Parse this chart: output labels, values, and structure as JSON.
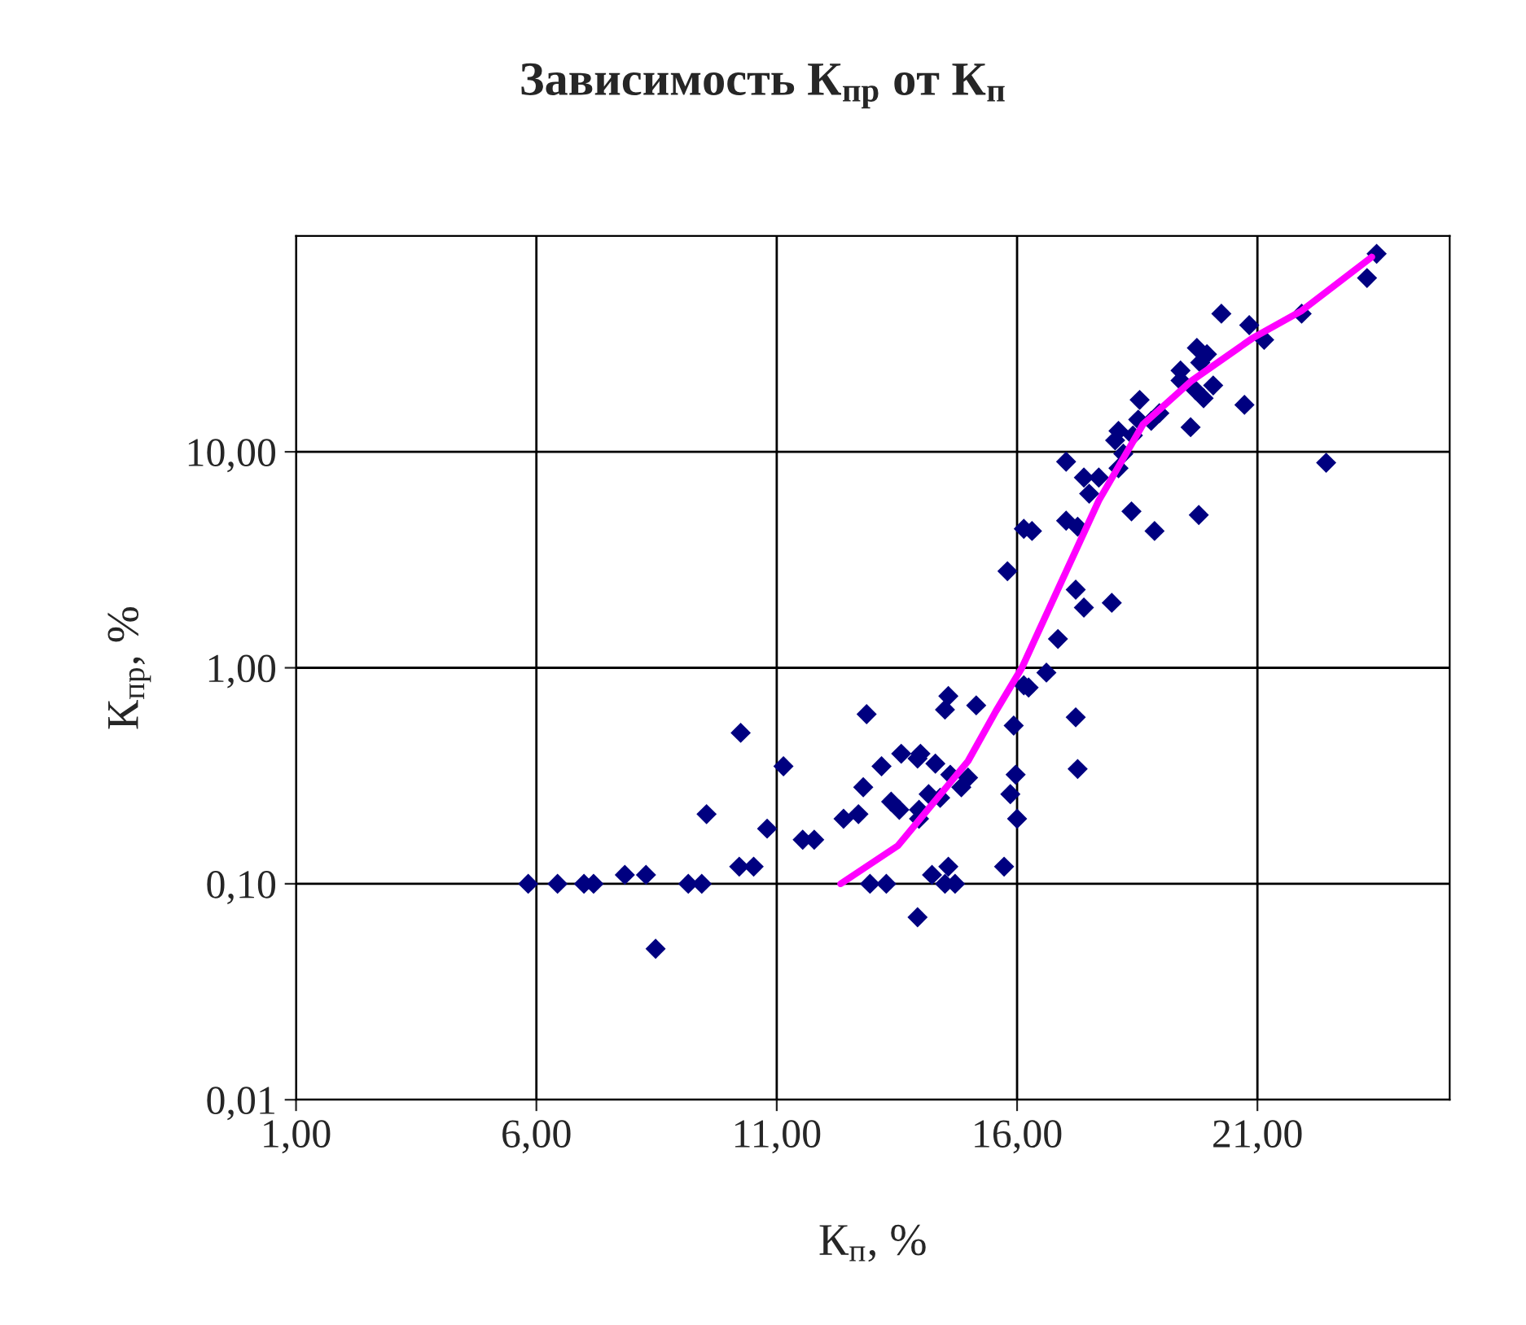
{
  "chart_data": {
    "type": "scatter",
    "title": "Зависимость К$_{пр}$ от К$_{п}$",
    "xlabel": "К$_{п}$, %",
    "ylabel": "К$_{пр}$, %",
    "log": "y",
    "grid": true,
    "marker": "diamond",
    "xlim": [
      1,
      25
    ],
    "xticks": [
      {
        "value": 1,
        "label": "1,00"
      },
      {
        "value": 6,
        "label": "6,00"
      },
      {
        "value": 11,
        "label": "11,00"
      },
      {
        "value": 16,
        "label": "16,00"
      },
      {
        "value": 21,
        "label": "21,00"
      }
    ],
    "ylim": [
      0.01,
      100
    ],
    "yticks": [
      {
        "value": 0.01,
        "label": "0,01"
      },
      {
        "value": 0.1,
        "label": "0,10"
      },
      {
        "value": 1,
        "label": "1,00"
      },
      {
        "value": 10,
        "label": "10,00"
      }
    ],
    "series": [
      {
        "color": "#000080",
        "x": [
          5.83,
          6.44,
          6.99,
          7.19,
          7.84,
          8.28,
          8.48,
          9.16,
          9.44,
          9.54,
          10.25,
          10.22,
          10.52,
          10.8,
          11.14,
          11.54,
          11.78,
          12.39,
          12.7,
          12.87,
          12.8,
          13.18,
          12.94,
          13.28,
          13.59,
          13.99,
          13.93,
          14.3,
          13.38,
          13.55,
          14.16,
          14.4,
          13.96,
          13.96,
          14.57,
          14.5,
          15.15,
          15.93,
          14.61,
          14.98,
          14.84,
          15.86,
          15.97,
          16.0,
          15.73,
          14.57,
          14.23,
          14.5,
          14.71,
          13.93,
          16.14,
          16.85,
          16.61,
          16.24,
          17.22,
          17.26,
          23.48,
          23.28,
          21.92,
          20.25,
          20.83,
          21.14,
          19.74,
          19.95,
          19.81,
          19.4,
          19.4,
          20.08,
          19.71,
          19.88,
          20.73,
          18.55,
          18.96,
          18.52,
          18.79,
          19.61,
          18.11,
          18.41,
          18.04,
          18.21,
          18.11,
          17.02,
          17.39,
          17.7,
          17.5,
          22.43,
          18.38,
          19.78,
          18.86,
          17.02,
          17.26,
          16.14,
          16.31,
          15.8,
          17.22,
          17.39,
          17.97
        ],
        "values": [
          0.1,
          0.1,
          0.1,
          0.1,
          0.11,
          0.11,
          0.05,
          0.1,
          0.1,
          0.21,
          0.5,
          0.12,
          0.12,
          0.18,
          0.35,
          0.16,
          0.16,
          0.2,
          0.21,
          0.61,
          0.28,
          0.35,
          0.1,
          0.1,
          0.4,
          0.4,
          0.38,
          0.36,
          0.24,
          0.22,
          0.26,
          0.25,
          0.22,
          0.2,
          0.74,
          0.64,
          0.67,
          0.54,
          0.32,
          0.31,
          0.28,
          0.26,
          0.32,
          0.2,
          0.12,
          0.12,
          0.11,
          0.1,
          0.1,
          0.07,
          0.83,
          1.36,
          0.95,
          0.81,
          0.59,
          0.34,
          82.6,
          63.8,
          43.6,
          43.6,
          38.6,
          33.0,
          30.3,
          28.3,
          25.9,
          23.8,
          21.4,
          20.3,
          19.3,
          17.7,
          16.5,
          17.4,
          15.1,
          14.1,
          13.9,
          13.0,
          12.5,
          11.9,
          11.3,
          9.8,
          8.4,
          9.0,
          7.6,
          7.6,
          6.4,
          8.9,
          5.3,
          5.1,
          4.3,
          4.8,
          4.5,
          4.4,
          4.3,
          2.8,
          2.3,
          1.9,
          2.0
        ]
      },
      {
        "type": "line",
        "color": "#ff00ff",
        "marker": "none",
        "x": [
          12.33,
          13.52,
          14.98,
          15.56,
          16.1,
          16.92,
          17.7,
          18.62,
          19.64,
          20.9,
          21.92,
          23.38
        ],
        "values": [
          0.1,
          0.15,
          0.37,
          0.63,
          1.0,
          2.5,
          5.95,
          13.4,
          21.4,
          33.6,
          45,
          79.8
        ]
      }
    ]
  }
}
